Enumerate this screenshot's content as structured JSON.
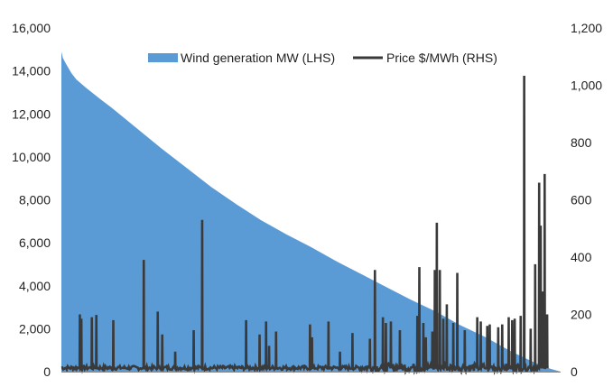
{
  "chart_data": {
    "type": "area",
    "x_axis": {
      "min": 0,
      "max": 100,
      "tick_labels": []
    },
    "y_left": {
      "min": 0,
      "max": 16000,
      "ticks": [
        0,
        2000,
        4000,
        6000,
        8000,
        10000,
        12000,
        14000,
        16000
      ],
      "tick_labels": [
        "0",
        "2,000",
        "4,000",
        "6,000",
        "8,000",
        "10,000",
        "12,000",
        "14,000",
        "16,000"
      ]
    },
    "y_right": {
      "min": 0,
      "max": 1200,
      "ticks": [
        0,
        200,
        400,
        600,
        800,
        1000,
        1200
      ],
      "tick_labels": [
        "0",
        "200",
        "400",
        "600",
        "800",
        "1,000",
        "1,200"
      ]
    },
    "legend": {
      "position": "top-center"
    },
    "series": [
      {
        "name": "Wind generation MW (LHS)",
        "kind": "area",
        "axis": "left",
        "color": "#5B9BD5",
        "x": [
          0,
          0.3,
          1,
          2,
          3,
          5,
          8,
          10,
          15,
          20,
          25,
          30,
          35,
          40,
          45,
          50,
          55,
          60,
          65,
          70,
          75,
          80,
          85,
          90,
          93,
          96,
          98,
          100
        ],
        "y": [
          14900,
          14600,
          14300,
          13900,
          13600,
          13200,
          12650,
          12300,
          11350,
          10400,
          9500,
          8600,
          7800,
          7050,
          6400,
          5800,
          5150,
          4550,
          3950,
          3350,
          2800,
          2150,
          1600,
          950,
          620,
          300,
          130,
          0
        ]
      },
      {
        "name": "Price $/MWh (RHS)",
        "kind": "line",
        "axis": "right",
        "color": "#3a3a3a",
        "baseline": 12,
        "spikes": [
          {
            "x": 3.7,
            "y": 200
          },
          {
            "x": 4.0,
            "y": 185
          },
          {
            "x": 6.1,
            "y": 190
          },
          {
            "x": 7.0,
            "y": 198
          },
          {
            "x": 10.4,
            "y": 180
          },
          {
            "x": 16.5,
            "y": 390
          },
          {
            "x": 19.3,
            "y": 210
          },
          {
            "x": 20.2,
            "y": 130
          },
          {
            "x": 22.8,
            "y": 70
          },
          {
            "x": 26.5,
            "y": 145
          },
          {
            "x": 28.2,
            "y": 530
          },
          {
            "x": 37.0,
            "y": 180
          },
          {
            "x": 39.7,
            "y": 130
          },
          {
            "x": 41.0,
            "y": 175
          },
          {
            "x": 41.6,
            "y": 90
          },
          {
            "x": 43.0,
            "y": 140
          },
          {
            "x": 49.8,
            "y": 165
          },
          {
            "x": 50.2,
            "y": 120
          },
          {
            "x": 53.5,
            "y": 175
          },
          {
            "x": 55.8,
            "y": 70
          },
          {
            "x": 58.3,
            "y": 135
          },
          {
            "x": 61.8,
            "y": 115
          },
          {
            "x": 62.8,
            "y": 355
          },
          {
            "x": 64.4,
            "y": 190
          },
          {
            "x": 65.0,
            "y": 170
          },
          {
            "x": 66.0,
            "y": 175
          },
          {
            "x": 67.8,
            "y": 145
          },
          {
            "x": 71.3,
            "y": 195
          },
          {
            "x": 71.7,
            "y": 365
          },
          {
            "x": 72.5,
            "y": 170
          },
          {
            "x": 73.0,
            "y": 120
          },
          {
            "x": 74.3,
            "y": 140
          },
          {
            "x": 74.8,
            "y": 355
          },
          {
            "x": 75.2,
            "y": 520
          },
          {
            "x": 75.8,
            "y": 355
          },
          {
            "x": 76.5,
            "y": 185
          },
          {
            "x": 77.2,
            "y": 235
          },
          {
            "x": 78.5,
            "y": 170
          },
          {
            "x": 79.3,
            "y": 345
          },
          {
            "x": 80.8,
            "y": 145
          },
          {
            "x": 83.3,
            "y": 190
          },
          {
            "x": 84.0,
            "y": 175
          },
          {
            "x": 85.3,
            "y": 160
          },
          {
            "x": 85.8,
            "y": 165
          },
          {
            "x": 87.5,
            "y": 155
          },
          {
            "x": 88.3,
            "y": 165
          },
          {
            "x": 89.6,
            "y": 190
          },
          {
            "x": 90.3,
            "y": 180
          },
          {
            "x": 90.8,
            "y": 185
          },
          {
            "x": 92.0,
            "y": 195
          },
          {
            "x": 92.7,
            "y": 1033
          },
          {
            "x": 94.0,
            "y": 150
          },
          {
            "x": 94.9,
            "y": 375
          },
          {
            "x": 95.7,
            "y": 660
          },
          {
            "x": 96.0,
            "y": 510
          },
          {
            "x": 96.4,
            "y": 280
          },
          {
            "x": 96.8,
            "y": 690
          },
          {
            "x": 97.3,
            "y": 200
          }
        ]
      }
    ]
  }
}
